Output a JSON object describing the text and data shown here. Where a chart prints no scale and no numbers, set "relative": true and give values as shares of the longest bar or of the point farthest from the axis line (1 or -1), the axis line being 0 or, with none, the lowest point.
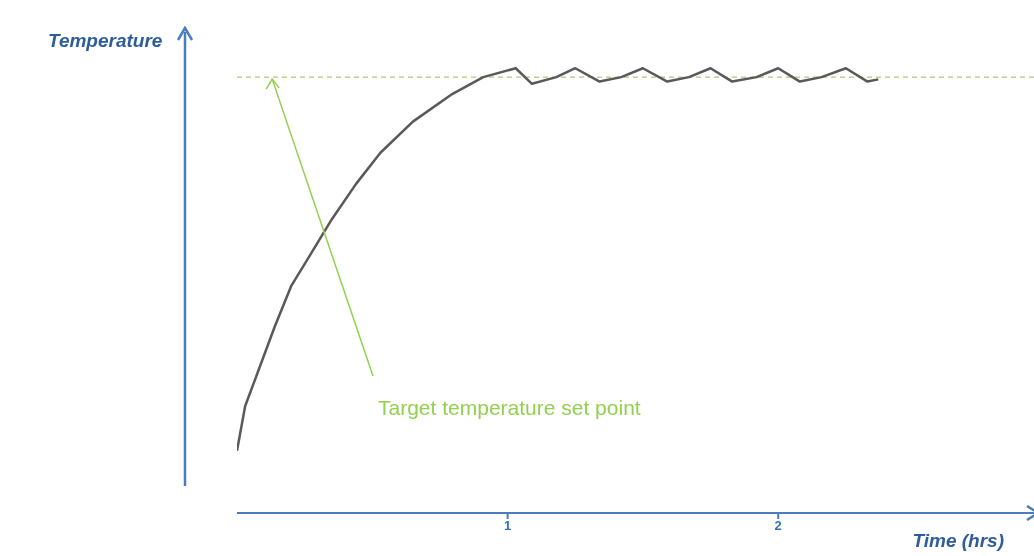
{
  "chart_data": {
    "type": "line",
    "relative": true,
    "ylabel": "Temperature",
    "xlabel": "Time (hrs)",
    "xlim": [
      0,
      2.96
    ],
    "xticks": [
      1,
      2
    ],
    "marker": "none",
    "line_style": "solid",
    "series": [
      {
        "color": "#595959",
        "x": [
          0,
          0.03,
          0.085,
          0.14,
          0.2,
          0.27,
          0.35,
          0.44,
          0.53,
          0.65,
          0.79,
          0.91,
          1.03,
          1.09,
          1.18,
          1.25,
          1.34,
          1.42,
          1.5,
          1.59,
          1.67,
          1.75,
          1.83,
          1.92,
          2.0,
          2.08,
          2.16,
          2.25,
          2.33,
          2.37
        ],
        "values": [
          0.14,
          0.24,
          0.33,
          0.42,
          0.51,
          0.58,
          0.66,
          0.74,
          0.81,
          0.88,
          0.94,
          0.98,
          1.0,
          0.965,
          0.98,
          1.0,
          0.97,
          0.98,
          1.0,
          0.97,
          0.98,
          1.0,
          0.97,
          0.98,
          1.0,
          0.97,
          0.98,
          1.0,
          0.97,
          0.975
        ]
      }
    ],
    "ref_lines": [
      {
        "axis": "y",
        "value": 0.98,
        "color": "#9bbb59",
        "line_style": "dashed"
      }
    ],
    "annotations": [
      {
        "text": "Target temperature set point",
        "x": 0.13,
        "y": 0.98
      }
    ]
  }
}
